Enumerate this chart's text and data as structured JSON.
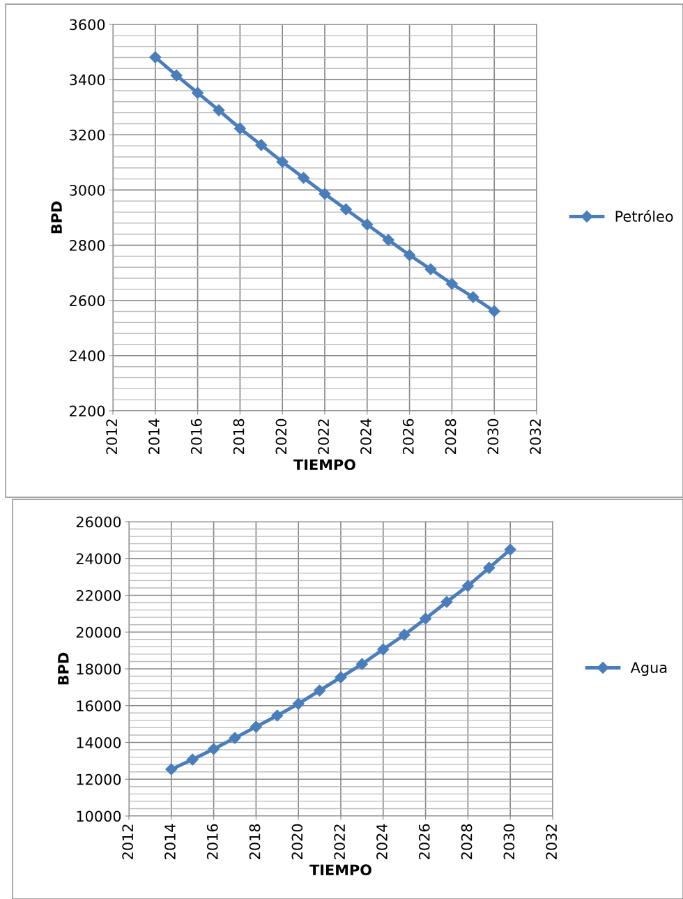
{
  "chart_data": [
    {
      "type": "line",
      "xlabel": "TIEMPO",
      "ylabel": "BPD",
      "x": [
        2014,
        2015,
        2016,
        2017,
        2018,
        2019,
        2020,
        2021,
        2022,
        2023,
        2024,
        2025,
        2026,
        2027,
        2028,
        2029,
        2030
      ],
      "series": [
        {
          "name": "Petróleo",
          "color": "#4a7ebb",
          "values": [
            3481,
            3415,
            3352,
            3289,
            3223,
            3163,
            3102,
            3044,
            2986,
            2930,
            2875,
            2819,
            2764,
            2713,
            2660,
            2612,
            2561
          ]
        }
      ],
      "xlim": [
        2012,
        2032
      ],
      "xticks": [
        2012,
        2014,
        2016,
        2018,
        2020,
        2022,
        2024,
        2026,
        2028,
        2030,
        2032
      ],
      "ylim": [
        2200,
        3600
      ],
      "yticks": [
        2200,
        2400,
        2600,
        2800,
        3000,
        3200,
        3400,
        3600
      ],
      "grid": true,
      "legend": "right",
      "marker": "diamond",
      "line_style": "solid"
    },
    {
      "type": "line",
      "xlabel": "TIEMPO",
      "ylabel": "BPD",
      "x": [
        2014,
        2015,
        2016,
        2017,
        2018,
        2019,
        2020,
        2021,
        2022,
        2023,
        2024,
        2025,
        2026,
        2027,
        2028,
        2029,
        2030
      ],
      "series": [
        {
          "name": "Agua",
          "color": "#4a7ebb",
          "values": [
            12540,
            13070,
            13640,
            14245,
            14850,
            15460,
            16100,
            16820,
            17540,
            18260,
            19060,
            19850,
            20730,
            21640,
            22510,
            23490,
            24480
          ]
        }
      ],
      "xlim": [
        2012,
        2032
      ],
      "xticks": [
        2012,
        2014,
        2016,
        2018,
        2020,
        2022,
        2024,
        2026,
        2028,
        2030,
        2032
      ],
      "ylim": [
        10000,
        26000
      ],
      "yticks": [
        10000,
        12000,
        14000,
        16000,
        18000,
        20000,
        22000,
        24000,
        26000
      ],
      "grid": true,
      "legend": "right",
      "marker": "diamond",
      "line_style": "solid"
    }
  ]
}
